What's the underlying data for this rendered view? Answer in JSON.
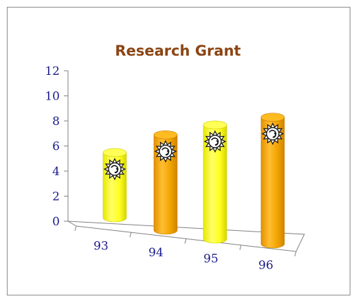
{
  "chart_data": {
    "type": "bar",
    "title": "Research Grant",
    "categories": [
      "93",
      "94",
      "95",
      "96"
    ],
    "values": [
      5.2,
      7.6,
      9.1,
      10.1
    ],
    "ylim": [
      0,
      12
    ],
    "yticks": [
      "0",
      "2",
      "4",
      "6",
      "8",
      "10",
      "12"
    ],
    "xlabel": "",
    "ylabel": "",
    "grid": false,
    "legend": "none",
    "bar_colors": [
      "#ffff33",
      "#f2a400",
      "#ffff33",
      "#f2a400"
    ],
    "title_color": "#8b4513",
    "tick_color": "#1a1a8c",
    "icon": "sun-emblem-icon"
  }
}
